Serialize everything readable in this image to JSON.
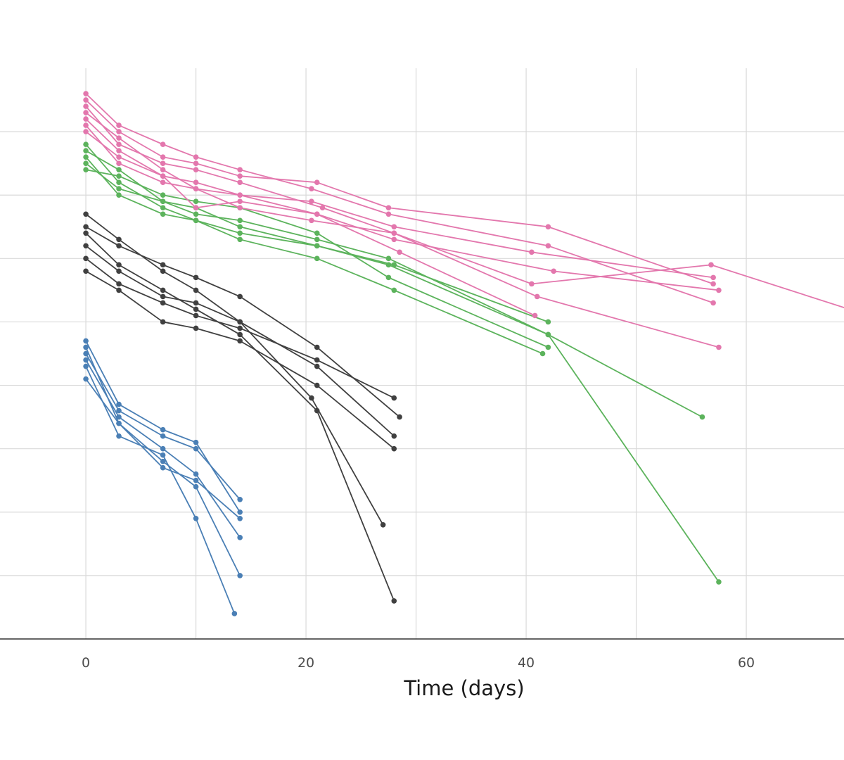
{
  "chart_data": {
    "type": "line",
    "title": "",
    "xlabel": "Time (days)",
    "ylabel": "",
    "x_ticks": [
      0,
      20,
      40,
      60
    ],
    "xlim": [
      0,
      76.5
    ],
    "ylim": [
      0,
      9
    ],
    "y_major_lines": [
      1,
      2,
      3,
      4,
      5,
      6,
      7,
      8
    ],
    "x_minor_lines": [
      10,
      30,
      50,
      70
    ],
    "grid": true,
    "legend": "none",
    "colors": {
      "blue": "#4a7fb5",
      "dark": "#404040",
      "green": "#5cb35c",
      "pink": "#e377ad",
      "grid": "#d9d9d9",
      "axis": "#333333"
    },
    "series": [
      {
        "group": "blue",
        "points": [
          [
            0,
            4.1
          ],
          [
            3,
            3.4
          ],
          [
            7,
            2.7
          ],
          [
            10,
            2.5
          ],
          [
            14,
            1.9
          ]
        ]
      },
      {
        "group": "blue",
        "points": [
          [
            0,
            4.3
          ],
          [
            3,
            3.2
          ],
          [
            7,
            2.9
          ],
          [
            10,
            1.9
          ],
          [
            13.5,
            0.4
          ]
        ]
      },
      {
        "group": "blue",
        "points": [
          [
            0,
            4.5
          ],
          [
            3,
            3.6
          ],
          [
            7,
            3.2
          ],
          [
            10,
            3.0
          ],
          [
            14,
            2.2
          ]
        ]
      },
      {
        "group": "blue",
        "points": [
          [
            0,
            4.4
          ],
          [
            3,
            3.5
          ],
          [
            7,
            3.0
          ],
          [
            10,
            2.6
          ],
          [
            14,
            1.6
          ]
        ]
      },
      {
        "group": "blue",
        "points": [
          [
            0,
            4.7
          ],
          [
            3,
            3.7
          ],
          [
            7,
            3.3
          ],
          [
            10,
            3.1
          ],
          [
            14,
            2.0
          ]
        ]
      },
      {
        "group": "blue",
        "points": [
          [
            0,
            4.6
          ],
          [
            3,
            3.4
          ],
          [
            7,
            2.8
          ],
          [
            10,
            2.4
          ],
          [
            14,
            1.0
          ]
        ]
      },
      {
        "group": "dark",
        "points": [
          [
            0,
            6.0
          ],
          [
            3,
            5.6
          ],
          [
            7,
            5.3
          ],
          [
            10,
            5.1
          ],
          [
            14,
            4.9
          ],
          [
            21,
            4.4
          ],
          [
            28,
            3.8
          ]
        ]
      },
      {
        "group": "dark",
        "points": [
          [
            0,
            6.5
          ],
          [
            3,
            6.2
          ],
          [
            7,
            5.9
          ],
          [
            10,
            5.7
          ],
          [
            14,
            5.4
          ],
          [
            21,
            4.6
          ],
          [
            28.5,
            3.5
          ]
        ]
      },
      {
        "group": "dark",
        "points": [
          [
            0,
            5.8
          ],
          [
            3,
            5.5
          ],
          [
            7,
            5.0
          ],
          [
            10,
            4.9
          ],
          [
            14,
            4.7
          ],
          [
            21,
            4.0
          ],
          [
            28,
            3.0
          ]
        ]
      },
      {
        "group": "dark",
        "points": [
          [
            0,
            6.2
          ],
          [
            3,
            5.8
          ],
          [
            7,
            5.4
          ],
          [
            10,
            5.3
          ],
          [
            14,
            5.0
          ],
          [
            20.5,
            3.8
          ],
          [
            27,
            1.8
          ]
        ]
      },
      {
        "group": "dark",
        "points": [
          [
            0,
            6.4
          ],
          [
            3,
            5.9
          ],
          [
            7,
            5.5
          ],
          [
            10,
            5.2
          ],
          [
            14,
            4.8
          ],
          [
            21,
            3.6
          ],
          [
            28,
            0.6
          ]
        ]
      },
      {
        "group": "dark",
        "points": [
          [
            0,
            6.7
          ],
          [
            3,
            6.3
          ],
          [
            7,
            5.8
          ],
          [
            10,
            5.5
          ],
          [
            14,
            5.0
          ],
          [
            21,
            4.3
          ],
          [
            28,
            3.2
          ]
        ]
      },
      {
        "group": "green",
        "points": [
          [
            0,
            7.7
          ],
          [
            3,
            7.4
          ],
          [
            7,
            6.9
          ],
          [
            10,
            6.8
          ],
          [
            14,
            6.5
          ],
          [
            21,
            6.2
          ],
          [
            28,
            5.9
          ],
          [
            42,
            5.0
          ]
        ]
      },
      {
        "group": "green",
        "points": [
          [
            0,
            7.6
          ],
          [
            3,
            7.0
          ],
          [
            7,
            6.7
          ],
          [
            10,
            6.6
          ],
          [
            14,
            6.3
          ],
          [
            21,
            6.0
          ],
          [
            28,
            5.5
          ],
          [
            41.5,
            4.5
          ]
        ]
      },
      {
        "group": "green",
        "points": [
          [
            0,
            7.4
          ],
          [
            3,
            7.3
          ],
          [
            7,
            7.0
          ],
          [
            10,
            6.9
          ],
          [
            14,
            6.8
          ],
          [
            21,
            6.4
          ],
          [
            27.5,
            5.7
          ],
          [
            42,
            4.6
          ]
        ]
      },
      {
        "group": "green",
        "points": [
          [
            0,
            7.8
          ],
          [
            3,
            7.2
          ],
          [
            7,
            6.8
          ],
          [
            10,
            6.6
          ],
          [
            14,
            6.4
          ],
          [
            21,
            6.2
          ],
          [
            27.5,
            5.9
          ],
          [
            42,
            4.8
          ],
          [
            56,
            3.5
          ]
        ]
      },
      {
        "group": "green",
        "points": [
          [
            0,
            7.5
          ],
          [
            3,
            7.1
          ],
          [
            7,
            6.9
          ],
          [
            10,
            6.7
          ],
          [
            14,
            6.6
          ],
          [
            21,
            6.3
          ],
          [
            27.5,
            6.0
          ],
          [
            42,
            4.8
          ],
          [
            57.5,
            0.9
          ]
        ]
      },
      {
        "group": "pink",
        "points": [
          [
            0,
            8.5
          ],
          [
            3,
            8.0
          ],
          [
            7,
            7.6
          ],
          [
            10,
            7.5
          ],
          [
            14,
            7.3
          ],
          [
            21,
            7.2
          ],
          [
            27.5,
            6.8
          ],
          [
            42,
            6.5
          ],
          [
            57,
            5.6
          ]
        ]
      },
      {
        "group": "pink",
        "points": [
          [
            0,
            8.3
          ],
          [
            3,
            7.9
          ],
          [
            7,
            7.4
          ],
          [
            10,
            7.1
          ],
          [
            14,
            7.0
          ],
          [
            21,
            6.7
          ],
          [
            28,
            6.3
          ],
          [
            42.5,
            5.8
          ],
          [
            57.5,
            5.5
          ]
        ]
      },
      {
        "group": "pink",
        "points": [
          [
            0,
            8.6
          ],
          [
            3,
            8.1
          ],
          [
            7,
            7.8
          ],
          [
            10,
            7.6
          ],
          [
            14,
            7.4
          ],
          [
            20.5,
            7.1
          ],
          [
            27.5,
            6.7
          ],
          [
            42,
            6.2
          ],
          [
            57,
            5.3
          ]
        ]
      },
      {
        "group": "pink",
        "points": [
          [
            0,
            8.2
          ],
          [
            3,
            7.7
          ],
          [
            7,
            7.3
          ],
          [
            10,
            7.2
          ],
          [
            14,
            7.0
          ],
          [
            20.5,
            6.9
          ],
          [
            28,
            6.5
          ],
          [
            40.5,
            6.1
          ],
          [
            57,
            5.7
          ]
        ]
      },
      {
        "group": "pink",
        "points": [
          [
            0,
            8.4
          ],
          [
            3,
            7.8
          ],
          [
            7,
            7.5
          ],
          [
            10,
            7.4
          ],
          [
            14,
            7.2
          ],
          [
            21.5,
            6.8
          ],
          [
            28,
            6.4
          ],
          [
            41,
            5.4
          ],
          [
            57.5,
            4.6
          ]
        ]
      },
      {
        "group": "pink",
        "points": [
          [
            0,
            8.0
          ],
          [
            3,
            7.6
          ],
          [
            7,
            7.3
          ],
          [
            10,
            6.8
          ],
          [
            14,
            6.9
          ],
          [
            21,
            6.7
          ],
          [
            28.5,
            6.1
          ],
          [
            40.8,
            5.1
          ]
        ]
      },
      {
        "group": "pink",
        "points": [
          [
            0,
            8.1
          ],
          [
            3,
            7.5
          ],
          [
            7,
            7.2
          ],
          [
            10,
            7.1
          ],
          [
            14,
            6.8
          ],
          [
            20.5,
            6.6
          ],
          [
            28,
            6.4
          ],
          [
            40.5,
            5.6
          ],
          [
            56.8,
            5.9
          ],
          [
            76.5,
            4.8
          ]
        ]
      }
    ]
  }
}
